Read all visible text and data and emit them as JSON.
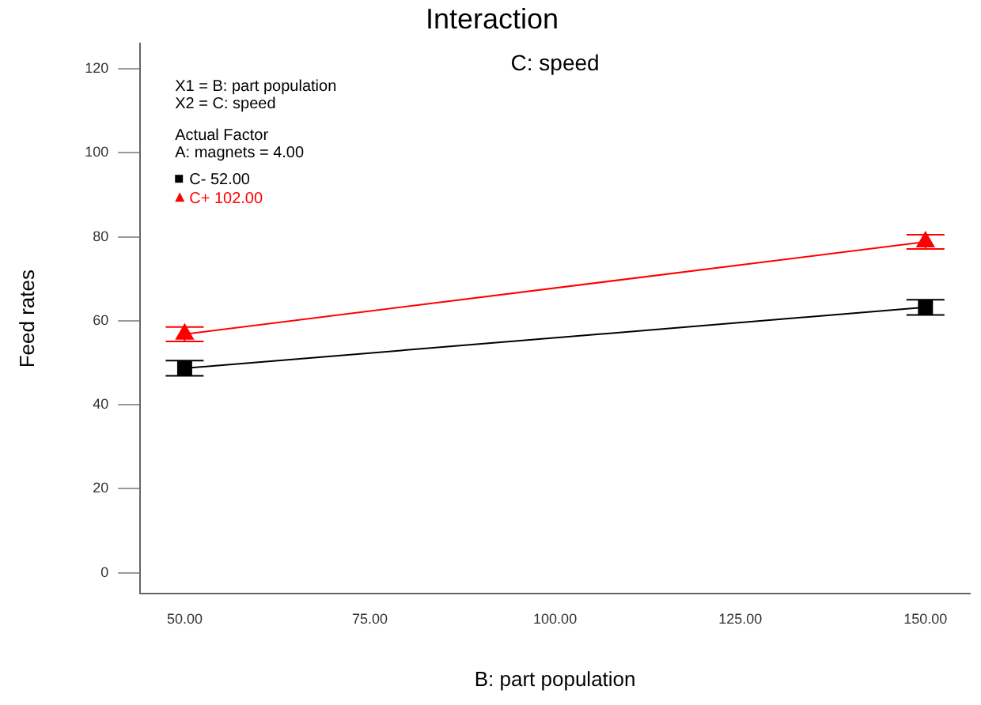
{
  "chart_data": {
    "type": "line",
    "title": "Interaction",
    "subtitle": "C: speed",
    "xlabel": "B: part population",
    "ylabel": "Feed rates",
    "x": [
      50,
      150
    ],
    "series": [
      {
        "name": "C- 52.00",
        "color": "#000000",
        "marker": "square",
        "values": [
          48.7,
          63.2
        ],
        "errors": [
          1.8,
          1.8
        ]
      },
      {
        "name": "C+ 102.00",
        "color": "#ff0000",
        "marker": "triangle",
        "values": [
          56.8,
          78.8
        ],
        "errors": [
          1.7,
          1.7
        ]
      }
    ],
    "xlim": [
      44,
      156
    ],
    "xticks": [
      {
        "value": 50,
        "label": "50.00"
      },
      {
        "value": 75,
        "label": "75.00"
      },
      {
        "value": 100,
        "label": "100.00"
      },
      {
        "value": 125,
        "label": "125.00"
      },
      {
        "value": 150,
        "label": "150.00"
      }
    ],
    "ylim": [
      -5,
      126
    ],
    "yticks": [
      0,
      20,
      40,
      60,
      80,
      100,
      120
    ],
    "annotations": [
      "X1 = B: part population",
      "X2 = C: speed",
      "Actual Factor",
      "A: magnets = 4.00"
    ],
    "legend": "top left",
    "grid": false
  }
}
